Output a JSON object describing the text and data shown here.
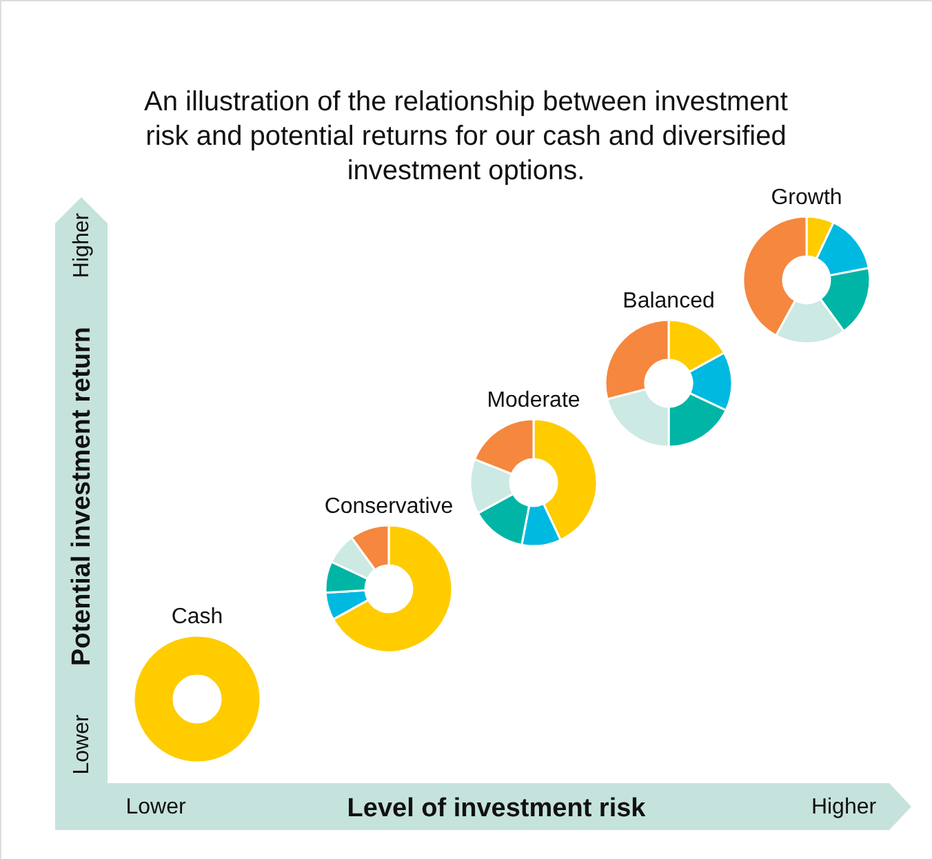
{
  "chart_data": [
    {
      "type": "other",
      "title": "An illustration of the relationship between investment risk and potential returns for our cash and diversified investment options.",
      "xlabel": "Level of investment risk",
      "ylabel": "Potential investment return",
      "annotations": [
        "Lower",
        "Higher",
        "Lower",
        "Higher"
      ]
    },
    {
      "type": "donut",
      "title": "Cash",
      "categories": [
        null
      ],
      "values": [
        100
      ],
      "colors": [
        "#ffcc00"
      ]
    },
    {
      "type": "donut",
      "title": "Conservative",
      "categories": [
        null,
        null,
        null,
        null,
        null
      ],
      "values": [
        67,
        7,
        8,
        8,
        10
      ],
      "colors": [
        "#ffcc00",
        "#00b9e0",
        "#00b5a5",
        "#cce9e4",
        "#f5873f"
      ]
    },
    {
      "type": "donut",
      "title": "Moderate",
      "categories": [
        null,
        null,
        null,
        null,
        null
      ],
      "values": [
        43,
        10,
        14,
        14,
        19
      ],
      "colors": [
        "#ffcc00",
        "#00b9e0",
        "#00b5a5",
        "#cce9e4",
        "#f5873f"
      ]
    },
    {
      "type": "donut",
      "title": "Balanced",
      "categories": [
        null,
        null,
        null,
        null,
        null
      ],
      "values": [
        17,
        15,
        18,
        21,
        29
      ],
      "colors": [
        "#ffcc00",
        "#00b9e0",
        "#00b5a5",
        "#cce9e4",
        "#f5873f"
      ]
    },
    {
      "type": "donut",
      "title": "Growth",
      "categories": [
        null,
        null,
        null,
        null,
        null
      ],
      "values": [
        7,
        15,
        18,
        18,
        42
      ],
      "colors": [
        "#ffcc00",
        "#00b9e0",
        "#00b5a5",
        "#cce9e4",
        "#f5873f"
      ]
    }
  ]
}
